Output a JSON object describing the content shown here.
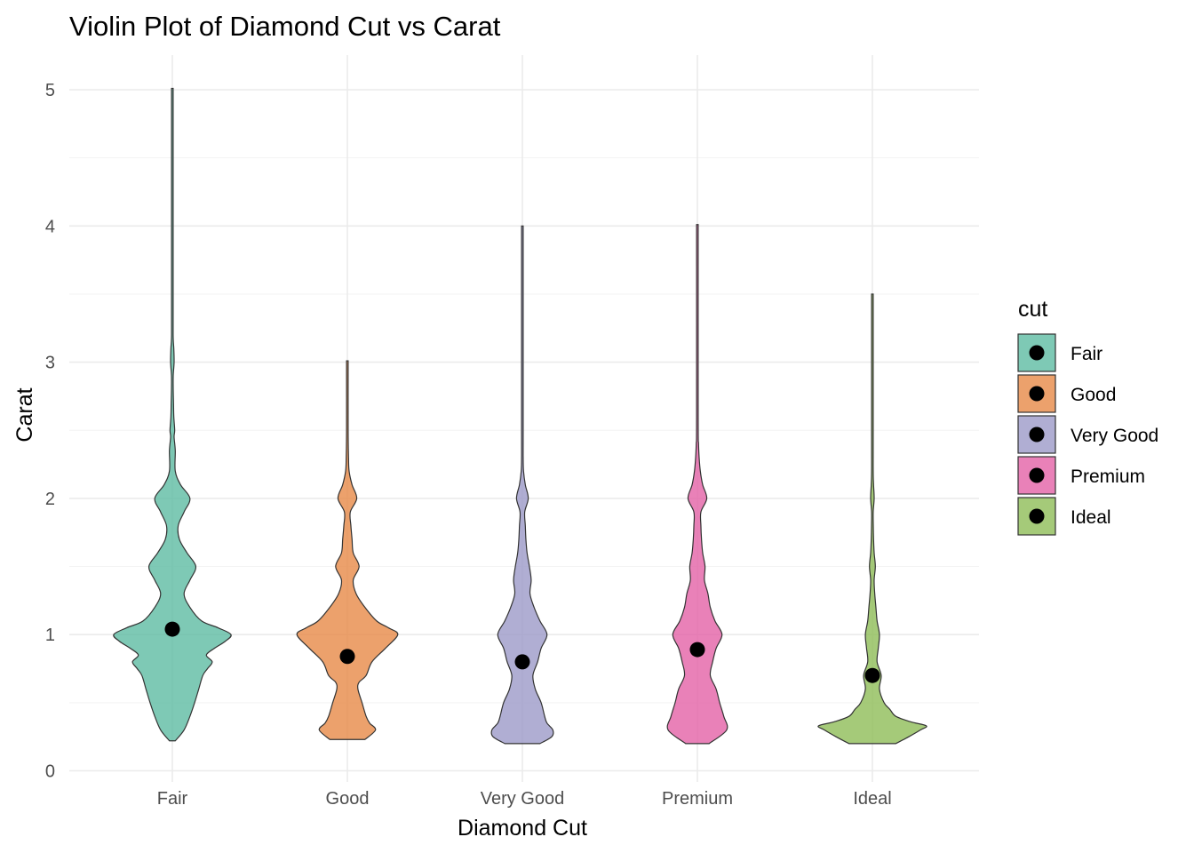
{
  "chart_data": {
    "type": "violin",
    "title": "Violin Plot of Diamond Cut vs Carat",
    "xlabel": "Diamond Cut",
    "ylabel": "Carat",
    "ylim": [
      0,
      5.2
    ],
    "y_ticks": [
      0,
      1,
      2,
      3,
      4,
      5
    ],
    "categories": [
      "Fair",
      "Good",
      "Very Good",
      "Premium",
      "Ideal"
    ],
    "legend": {
      "title": "cut",
      "placement": "right",
      "items": [
        "Fair",
        "Good",
        "Very Good",
        "Premium",
        "Ideal"
      ]
    },
    "grid": true,
    "series": [
      {
        "name": "Fair",
        "color": "#5EBCA2",
        "mean": 1.04,
        "min": 0.22,
        "max": 5.01,
        "profile": [
          [
            0.22,
            0.05
          ],
          [
            0.3,
            0.2
          ],
          [
            0.4,
            0.3
          ],
          [
            0.5,
            0.38
          ],
          [
            0.6,
            0.45
          ],
          [
            0.7,
            0.52
          ],
          [
            0.75,
            0.6
          ],
          [
            0.8,
            0.68
          ],
          [
            0.85,
            0.58
          ],
          [
            0.9,
            0.72
          ],
          [
            0.95,
            0.9
          ],
          [
            1.0,
            1.0
          ],
          [
            1.05,
            0.78
          ],
          [
            1.1,
            0.5
          ],
          [
            1.2,
            0.3
          ],
          [
            1.3,
            0.2
          ],
          [
            1.4,
            0.3
          ],
          [
            1.5,
            0.4
          ],
          [
            1.6,
            0.25
          ],
          [
            1.7,
            0.12
          ],
          [
            1.8,
            0.1
          ],
          [
            1.9,
            0.2
          ],
          [
            2.0,
            0.3
          ],
          [
            2.1,
            0.14
          ],
          [
            2.2,
            0.05
          ],
          [
            2.35,
            0.05
          ],
          [
            2.45,
            0.03
          ],
          [
            2.5,
            0.04
          ],
          [
            2.6,
            0.025
          ],
          [
            2.7,
            0.02
          ],
          [
            2.8,
            0.015
          ],
          [
            2.9,
            0.015
          ],
          [
            3.0,
            0.03
          ],
          [
            3.1,
            0.025
          ],
          [
            3.2,
            0.01
          ],
          [
            3.5,
            0.01
          ],
          [
            4.0,
            0.01
          ],
          [
            4.5,
            0.01
          ],
          [
            5.01,
            0.01
          ]
        ]
      },
      {
        "name": "Good",
        "color": "#E78A47",
        "mean": 0.84,
        "min": 0.23,
        "max": 3.01,
        "profile": [
          [
            0.23,
            0.3
          ],
          [
            0.3,
            0.48
          ],
          [
            0.35,
            0.38
          ],
          [
            0.4,
            0.32
          ],
          [
            0.5,
            0.25
          ],
          [
            0.6,
            0.18
          ],
          [
            0.65,
            0.2
          ],
          [
            0.7,
            0.32
          ],
          [
            0.8,
            0.42
          ],
          [
            0.9,
            0.65
          ],
          [
            1.0,
            0.86
          ],
          [
            1.05,
            0.7
          ],
          [
            1.1,
            0.5
          ],
          [
            1.2,
            0.3
          ],
          [
            1.3,
            0.15
          ],
          [
            1.4,
            0.1
          ],
          [
            1.5,
            0.2
          ],
          [
            1.6,
            0.1
          ],
          [
            1.7,
            0.08
          ],
          [
            1.8,
            0.06
          ],
          [
            1.9,
            0.05
          ],
          [
            2.0,
            0.16
          ],
          [
            2.1,
            0.08
          ],
          [
            2.2,
            0.03
          ],
          [
            2.3,
            0.02
          ],
          [
            2.5,
            0.01
          ],
          [
            3.01,
            0.01
          ]
        ]
      },
      {
        "name": "Very Good",
        "color": "#9C9AC8",
        "mean": 0.8,
        "min": 0.2,
        "max": 4.0,
        "profile": [
          [
            0.2,
            0.3
          ],
          [
            0.25,
            0.5
          ],
          [
            0.3,
            0.52
          ],
          [
            0.35,
            0.42
          ],
          [
            0.4,
            0.38
          ],
          [
            0.5,
            0.32
          ],
          [
            0.6,
            0.22
          ],
          [
            0.7,
            0.18
          ],
          [
            0.8,
            0.26
          ],
          [
            0.9,
            0.32
          ],
          [
            1.0,
            0.42
          ],
          [
            1.1,
            0.3
          ],
          [
            1.2,
            0.2
          ],
          [
            1.3,
            0.13
          ],
          [
            1.4,
            0.15
          ],
          [
            1.5,
            0.12
          ],
          [
            1.6,
            0.08
          ],
          [
            1.7,
            0.06
          ],
          [
            1.8,
            0.05
          ],
          [
            1.9,
            0.04
          ],
          [
            2.0,
            0.1
          ],
          [
            2.1,
            0.05
          ],
          [
            2.2,
            0.02
          ],
          [
            2.3,
            0.01
          ],
          [
            2.5,
            0.01
          ],
          [
            4.0,
            0.01
          ]
        ]
      },
      {
        "name": "Premium",
        "color": "#E462A6",
        "mean": 0.89,
        "min": 0.2,
        "max": 4.01,
        "profile": [
          [
            0.2,
            0.2
          ],
          [
            0.3,
            0.5
          ],
          [
            0.4,
            0.45
          ],
          [
            0.5,
            0.38
          ],
          [
            0.6,
            0.32
          ],
          [
            0.7,
            0.22
          ],
          [
            0.8,
            0.26
          ],
          [
            0.9,
            0.32
          ],
          [
            1.0,
            0.42
          ],
          [
            1.1,
            0.3
          ],
          [
            1.2,
            0.22
          ],
          [
            1.3,
            0.18
          ],
          [
            1.4,
            0.12
          ],
          [
            1.5,
            0.13
          ],
          [
            1.6,
            0.09
          ],
          [
            1.7,
            0.07
          ],
          [
            1.8,
            0.06
          ],
          [
            1.9,
            0.06
          ],
          [
            2.0,
            0.16
          ],
          [
            2.1,
            0.09
          ],
          [
            2.2,
            0.05
          ],
          [
            2.3,
            0.03
          ],
          [
            2.4,
            0.02
          ],
          [
            2.6,
            0.01
          ],
          [
            4.01,
            0.01
          ]
        ]
      },
      {
        "name": "Ideal",
        "color": "#8EBD58",
        "mean": 0.7,
        "min": 0.2,
        "max": 3.5,
        "profile": [
          [
            0.2,
            0.4
          ],
          [
            0.25,
            0.62
          ],
          [
            0.3,
            0.82
          ],
          [
            0.33,
            0.92
          ],
          [
            0.36,
            0.65
          ],
          [
            0.4,
            0.4
          ],
          [
            0.45,
            0.3
          ],
          [
            0.5,
            0.2
          ],
          [
            0.6,
            0.12
          ],
          [
            0.7,
            0.15
          ],
          [
            0.8,
            0.08
          ],
          [
            0.9,
            0.1
          ],
          [
            1.0,
            0.12
          ],
          [
            1.1,
            0.08
          ],
          [
            1.2,
            0.06
          ],
          [
            1.3,
            0.04
          ],
          [
            1.4,
            0.03
          ],
          [
            1.5,
            0.05
          ],
          [
            1.6,
            0.03
          ],
          [
            1.7,
            0.02
          ],
          [
            1.8,
            0.015
          ],
          [
            1.9,
            0.01
          ],
          [
            2.0,
            0.03
          ],
          [
            2.1,
            0.02
          ],
          [
            2.2,
            0.01
          ],
          [
            2.5,
            0.01
          ],
          [
            3.5,
            0.01
          ]
        ]
      }
    ]
  }
}
